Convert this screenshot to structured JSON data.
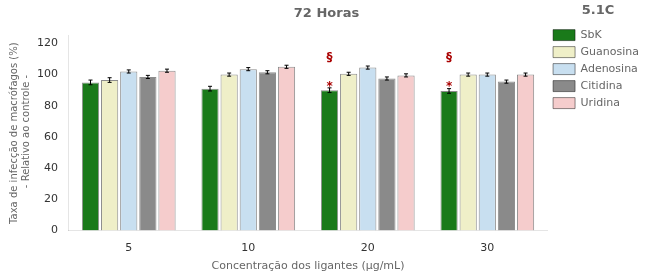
{
  "chart_data": {
    "type": "bar",
    "title": "72 Horas",
    "xlabel": "Concentração dos ligantes (µg/mL)",
    "ylabel": "Taxa de infecção de macrófagos (%)\n - Relativo ao controle -",
    "categories": [
      "5",
      "10",
      "20",
      "30"
    ],
    "series": [
      {
        "name": "SbK",
        "color": "#1a7a1a",
        "values": [
          95.0,
          91.0,
          90.0,
          89.5
        ],
        "errors": [
          1.5,
          1.5,
          1.5,
          1.5
        ]
      },
      {
        "name": "Guanosina",
        "color": "#efefc8",
        "values": [
          96.5,
          100.0,
          100.5,
          100.0
        ],
        "errors": [
          1.5,
          1.0,
          1.0,
          1.0
        ]
      },
      {
        "name": "Adenosina",
        "color": "#c8dff0",
        "values": [
          102.0,
          103.5,
          104.5,
          100.0
        ],
        "errors": [
          1.0,
          1.0,
          1.0,
          1.0
        ]
      },
      {
        "name": "Citidina",
        "color": "#8a8a8a",
        "values": [
          98.5,
          101.5,
          97.5,
          95.5
        ],
        "errors": [
          1.0,
          1.0,
          1.0,
          1.0
        ]
      },
      {
        "name": "Uridina",
        "color": "#f5cccc",
        "values": [
          102.5,
          105.0,
          99.5,
          100.0
        ],
        "errors": [
          1.0,
          1.0,
          1.0,
          1.0
        ]
      }
    ],
    "ylim": [
      0,
      125
    ],
    "yticks": [
      0,
      20,
      40,
      60,
      80,
      100,
      120
    ],
    "grid": false,
    "legend": "right",
    "annotations": [
      {
        "text": "5.1C"
      },
      {
        "text": "§",
        "category": "20",
        "series": "SbK",
        "y": 107,
        "color": "#aa0000"
      },
      {
        "text": "§",
        "category": "30",
        "series": "SbK",
        "y": 107,
        "color": "#aa0000"
      },
      {
        "text": "*",
        "category": "20",
        "series": "SbK",
        "y": 88.0,
        "color": "#aa0000"
      },
      {
        "text": "*",
        "category": "30",
        "series": "SbK",
        "y": 88.0,
        "color": "#aa0000"
      }
    ]
  }
}
